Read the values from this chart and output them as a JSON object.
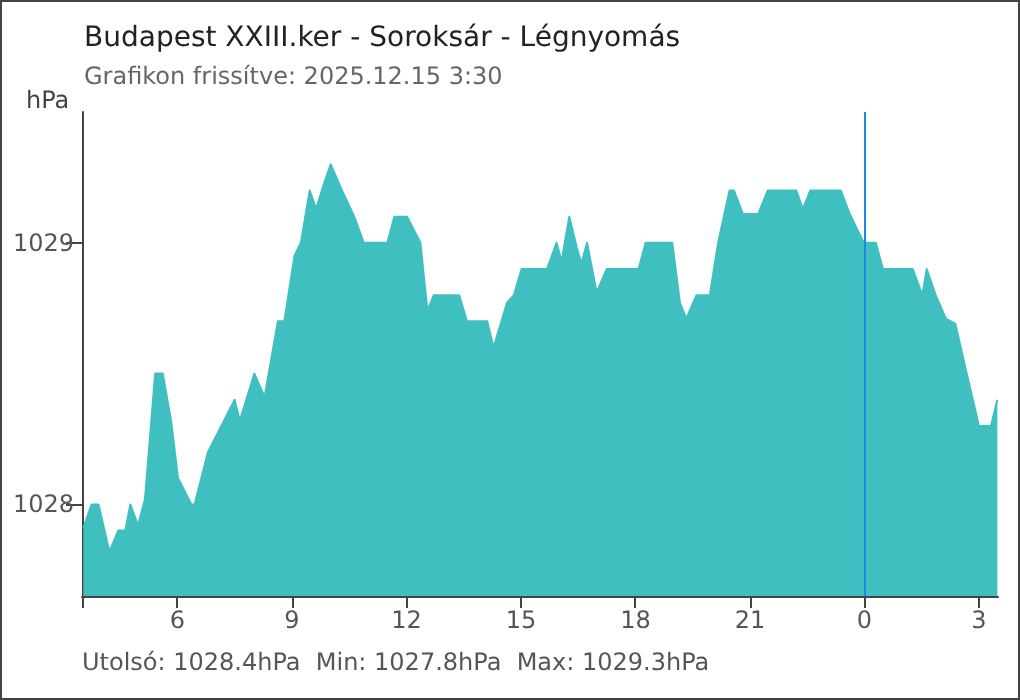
{
  "chart_data": {
    "type": "area",
    "title": "Budapest XXIII.ker - Soroksár - Légnyomás",
    "subtitle": "Grafikon frissítve: 2025.12.15 3:30",
    "ylabel": "hPa",
    "annotations": [
      "Utolsó: 1028.4hPa  Min: 1027.8hPa  Max: 1029.3hPa"
    ],
    "x": [
      "2025-12-14T03:32",
      "2025-12-14T03:45",
      "2025-12-14T03:56",
      "2025-12-14T04:13",
      "2025-12-14T04:27",
      "2025-12-14T04:38",
      "2025-12-14T04:46",
      "2025-12-14T04:58",
      "2025-12-14T05:09",
      "2025-12-14T05:25",
      "2025-12-14T05:37",
      "2025-12-14T05:50",
      "2025-12-14T06:01",
      "2025-12-14T06:22",
      "2025-12-14T06:27",
      "2025-12-14T06:48",
      "2025-12-14T07:09",
      "2025-12-14T07:30",
      "2025-12-14T07:38",
      "2025-12-14T08:01",
      "2025-12-14T08:17",
      "2025-12-14T08:38",
      "2025-12-14T08:48",
      "2025-12-14T09:04",
      "2025-12-14T09:14",
      "2025-12-14T09:28",
      "2025-12-14T09:38",
      "2025-12-14T09:51",
      "2025-12-14T10:01",
      "2025-12-14T10:17",
      "2025-12-14T10:38",
      "2025-12-14T10:53",
      "2025-12-14T11:30",
      "2025-12-14T11:41",
      "2025-12-14T12:01",
      "2025-12-14T12:22",
      "2025-12-14T12:33",
      "2025-12-14T12:43",
      "2025-12-14T13:23",
      "2025-12-14T13:35",
      "2025-12-14T14:07",
      "2025-12-14T14:17",
      "2025-12-14T14:38",
      "2025-12-14T14:49",
      "2025-12-14T15:01",
      "2025-12-14T15:31",
      "2025-12-14T15:41",
      "2025-12-14T15:56",
      "2025-12-14T16:04",
      "2025-12-14T16:16",
      "2025-12-14T16:28",
      "2025-12-14T16:35",
      "2025-12-14T16:44",
      "2025-12-14T16:59",
      "2025-12-14T17:15",
      "2025-12-14T18:05",
      "2025-12-14T18:16",
      "2025-12-14T18:58",
      "2025-12-14T19:10",
      "2025-12-14T19:20",
      "2025-12-14T19:36",
      "2025-12-14T19:57",
      "2025-12-14T20:10",
      "2025-12-14T20:28",
      "2025-12-14T20:35",
      "2025-12-14T20:49",
      "2025-12-14T21:13",
      "2025-12-14T21:28",
      "2025-12-14T22:13",
      "2025-12-14T22:23",
      "2025-12-14T22:35",
      "2025-12-14T23:23",
      "2025-12-14T23:37",
      "2025-12-14T23:47",
      "2025-12-14T23:59",
      "2025-12-15T00:18",
      "2025-12-15T00:29",
      "2025-12-15T01:16",
      "2025-12-15T01:31",
      "2025-12-15T01:38",
      "2025-12-15T01:52",
      "2025-12-15T02:08",
      "2025-12-15T02:23",
      "2025-12-15T02:39",
      "2025-12-15T03:00",
      "2025-12-15T03:19",
      "2025-12-15T03:29"
    ],
    "series": [
      {
        "color": "#40bfc1",
        "values": [
          1027.91,
          1028.0,
          1028.0,
          1027.82,
          1027.9,
          1027.9,
          1028.0,
          1027.92,
          1028.02,
          1028.5,
          1028.5,
          1028.32,
          1028.1,
          1028.0,
          1028.0,
          1028.2,
          1028.3,
          1028.4,
          1028.32,
          1028.5,
          1028.41,
          1028.7,
          1028.7,
          1028.95,
          1029.0,
          1029.2,
          1029.13,
          1029.23,
          1029.3,
          1029.21,
          1029.1,
          1029.0,
          1029.0,
          1029.1,
          1029.1,
          1029.0,
          1028.74,
          1028.8,
          1028.8,
          1028.7,
          1028.7,
          1028.6,
          1028.77,
          1028.8,
          1028.9,
          1028.9,
          1028.9,
          1029.0,
          1028.93,
          1029.1,
          1028.98,
          1028.92,
          1029.0,
          1028.81,
          1028.9,
          1028.9,
          1029.0,
          1029.0,
          1028.77,
          1028.71,
          1028.8,
          1028.8,
          1029.0,
          1029.2,
          1029.2,
          1029.11,
          1029.11,
          1029.2,
          1029.2,
          1029.13,
          1029.2,
          1029.2,
          1029.11,
          1029.06,
          1029.0,
          1029.0,
          1028.9,
          1028.9,
          1028.8,
          1028.9,
          1028.8,
          1028.71,
          1028.69,
          1028.52,
          1028.3,
          1028.3,
          1028.4
        ]
      }
    ],
    "xlim": [
      "2025-12-14T03:30",
      "2025-12-15T03:30"
    ],
    "ylim": [
      1027.65,
      1029.5
    ],
    "xticks": [
      {
        "value": "2025-12-14T03:30",
        "label": null
      },
      {
        "value": "2025-12-14T06:00",
        "label": "6"
      },
      {
        "value": "2025-12-14T09:00",
        "label": "9"
      },
      {
        "value": "2025-12-14T12:00",
        "label": "12"
      },
      {
        "value": "2025-12-14T15:00",
        "label": "15"
      },
      {
        "value": "2025-12-14T18:00",
        "label": "18"
      },
      {
        "value": "2025-12-14T21:00",
        "label": "21"
      },
      {
        "value": "2025-12-15T00:00",
        "label": "0"
      },
      {
        "value": "2025-12-15T03:00",
        "label": "3"
      }
    ],
    "yticks": [
      1028,
      1029
    ],
    "ref_lines": [
      {
        "axis": "x",
        "value": "2025-12-15T00:00",
        "label": null,
        "color": "#1e88e5"
      }
    ],
    "grid": false,
    "marker": "none"
  }
}
